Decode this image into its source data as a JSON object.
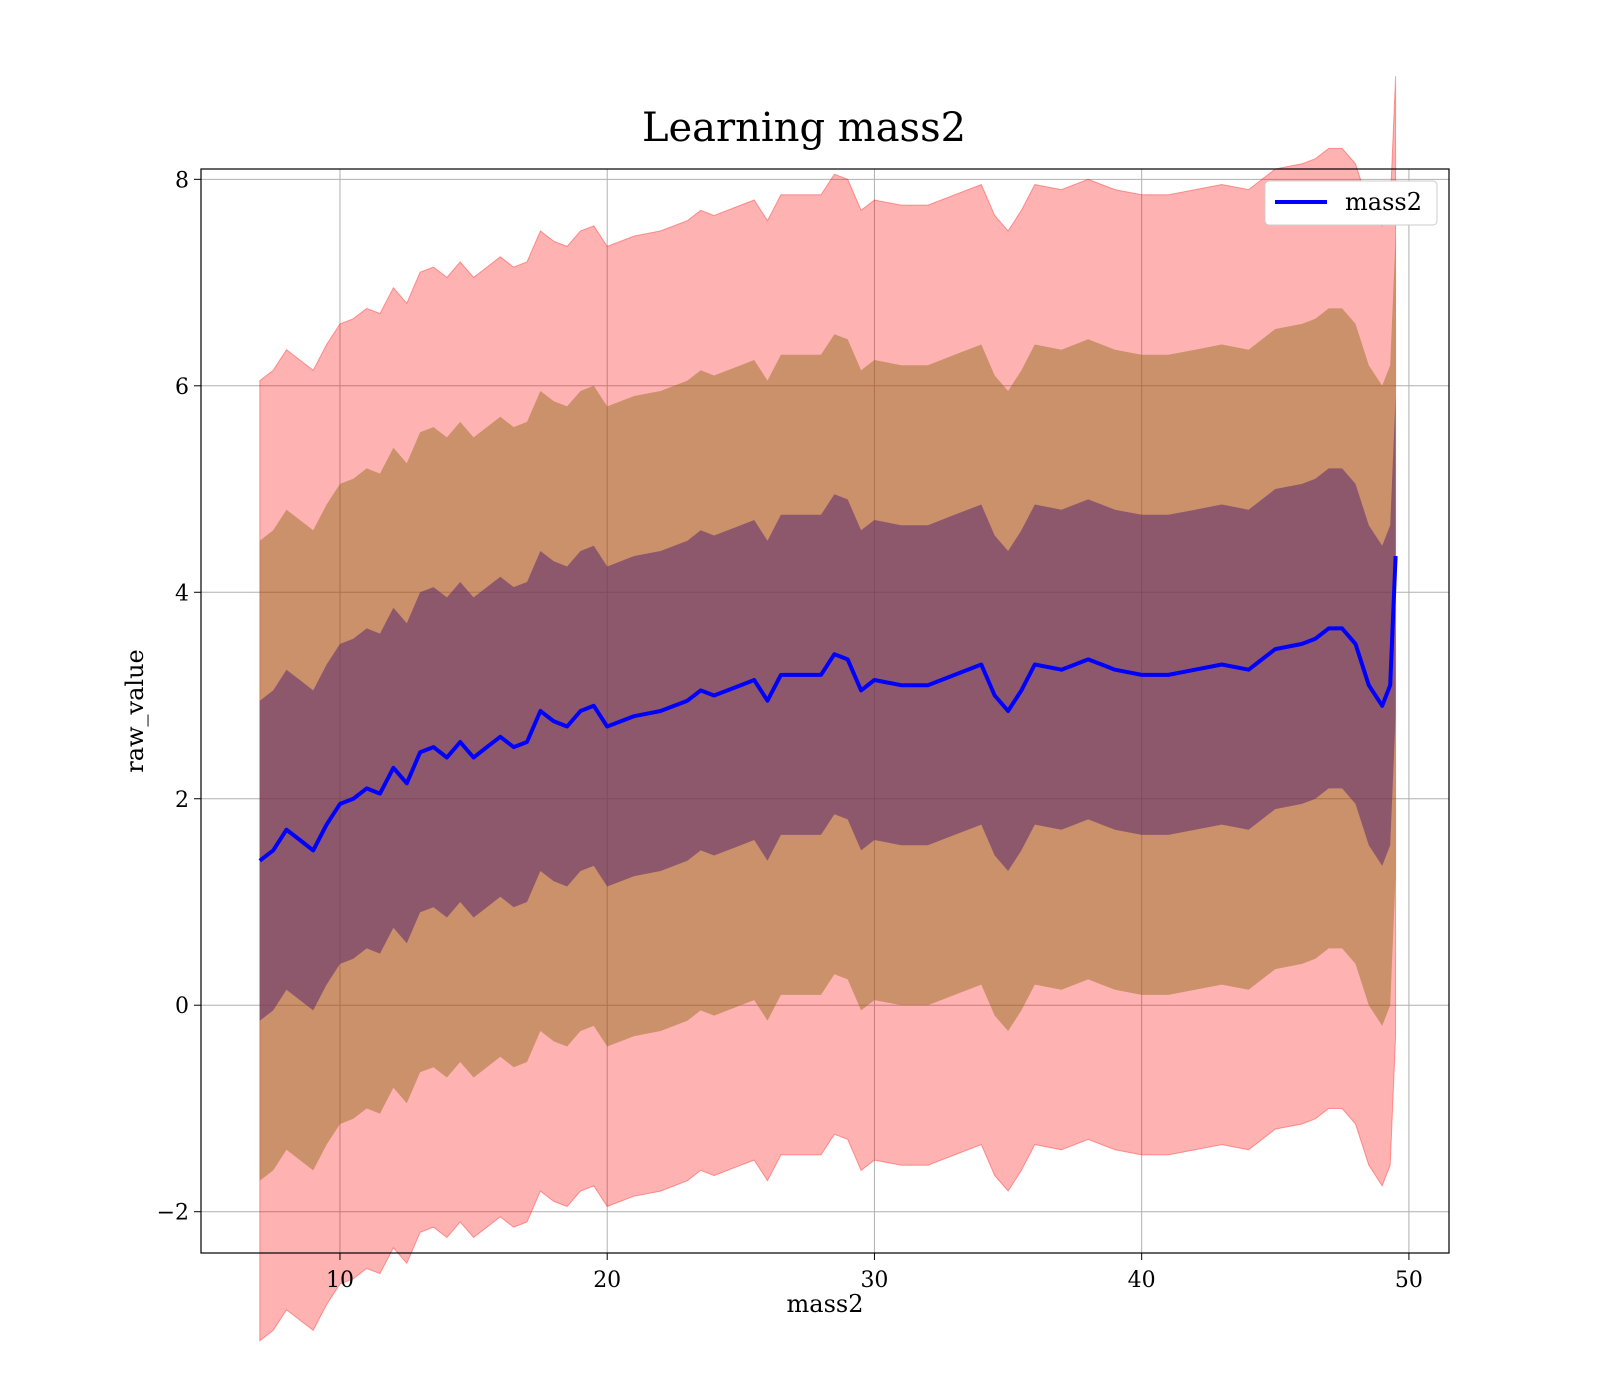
{
  "chart_data": {
    "type": "area",
    "title": "Learning mass2",
    "xlabel": "mass2",
    "ylabel": "raw_value",
    "xlim": [
      4.8,
      51.5
    ],
    "ylim": [
      -2.4,
      8.1
    ],
    "xticks": [
      10,
      20,
      30,
      40,
      50
    ],
    "yticks": [
      -2,
      0,
      2,
      4,
      6,
      8
    ],
    "grid": true,
    "legend_position": "top-right",
    "colors": {
      "line": "#0000ff",
      "band_3sigma": "#ff0000",
      "band_2sigma": "#8b6914",
      "band_1sigma": "#5c2a6e"
    },
    "series": [
      {
        "name": "mass2",
        "x": [
          7.0,
          7.5,
          8.0,
          8.5,
          9.0,
          9.5,
          10.0,
          10.5,
          11.0,
          11.5,
          12.0,
          12.5,
          13.0,
          13.5,
          14.0,
          14.5,
          15.0,
          15.5,
          16.0,
          16.5,
          17.0,
          17.5,
          18.0,
          18.5,
          19.0,
          19.5,
          20.0,
          21.0,
          22.0,
          23.0,
          23.5,
          24.0,
          25.0,
          25.5,
          26.0,
          26.5,
          27.0,
          28.0,
          28.5,
          29.0,
          29.5,
          30.0,
          31.0,
          32.0,
          33.0,
          34.0,
          34.5,
          35.0,
          35.5,
          36.0,
          37.0,
          38.0,
          38.5,
          39.0,
          40.0,
          41.0,
          42.0,
          43.0,
          44.0,
          45.0,
          46.0,
          46.5,
          47.0,
          47.5,
          48.0,
          48.5,
          49.0,
          49.3,
          49.5
        ],
        "values": [
          1.4,
          1.5,
          1.7,
          1.6,
          1.5,
          1.75,
          1.95,
          2.0,
          2.1,
          2.05,
          2.3,
          2.15,
          2.45,
          2.5,
          2.4,
          2.55,
          2.4,
          2.5,
          2.6,
          2.5,
          2.55,
          2.85,
          2.75,
          2.7,
          2.85,
          2.9,
          2.7,
          2.8,
          2.85,
          2.95,
          3.05,
          3.0,
          3.1,
          3.15,
          2.95,
          3.2,
          3.2,
          3.2,
          3.4,
          3.35,
          3.05,
          3.15,
          3.1,
          3.1,
          3.2,
          3.3,
          3.0,
          2.85,
          3.05,
          3.3,
          3.25,
          3.35,
          3.3,
          3.25,
          3.2,
          3.2,
          3.25,
          3.3,
          3.25,
          3.45,
          3.5,
          3.55,
          3.65,
          3.65,
          3.5,
          3.1,
          2.9,
          3.1,
          4.35
        ],
        "sigma": [
          1.55,
          1.55,
          1.55,
          1.55,
          1.55,
          1.55,
          1.55,
          1.55,
          1.55,
          1.55,
          1.55,
          1.55,
          1.55,
          1.55,
          1.55,
          1.55,
          1.55,
          1.55,
          1.55,
          1.55,
          1.55,
          1.55,
          1.55,
          1.55,
          1.55,
          1.55,
          1.55,
          1.55,
          1.55,
          1.55,
          1.55,
          1.55,
          1.55,
          1.55,
          1.55,
          1.55,
          1.55,
          1.55,
          1.55,
          1.55,
          1.55,
          1.55,
          1.55,
          1.55,
          1.55,
          1.55,
          1.55,
          1.55,
          1.55,
          1.55,
          1.55,
          1.55,
          1.55,
          1.55,
          1.55,
          1.55,
          1.55,
          1.55,
          1.55,
          1.55,
          1.55,
          1.55,
          1.55,
          1.55,
          1.55,
          1.55,
          1.55,
          1.55,
          1.55
        ]
      }
    ]
  }
}
